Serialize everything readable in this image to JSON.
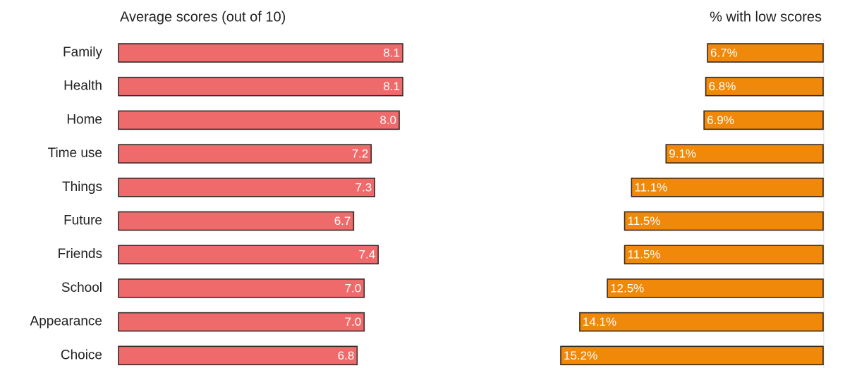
{
  "chart_data": [
    {
      "type": "bar",
      "title": "Average scores (out of 10)",
      "categories": [
        "Family",
        "Health",
        "Home",
        "Time use",
        "Things",
        "Future",
        "Friends",
        "School",
        "Appearance",
        "Choice"
      ],
      "values": [
        8.1,
        8.1,
        8.0,
        7.2,
        7.3,
        6.7,
        7.4,
        7.0,
        7.0,
        6.8
      ],
      "value_labels": [
        "8.1",
        "8.1",
        "8.0",
        "7.2",
        "7.3",
        "6.7",
        "7.4",
        "7.0",
        "7.0",
        "6.8"
      ],
      "color": "#ef6b6b"
    },
    {
      "type": "bar",
      "title": "% with low scores",
      "values": [
        6.7,
        6.8,
        6.9,
        9.1,
        11.1,
        11.5,
        11.5,
        12.5,
        14.1,
        15.2
      ],
      "value_labels": [
        "6.7%",
        "6.8%",
        "6.9%",
        "9.1%",
        "11.1%",
        "11.5%",
        "11.5%",
        "12.5%",
        "14.1%",
        "15.2%"
      ],
      "color": "#f0880a"
    }
  ]
}
